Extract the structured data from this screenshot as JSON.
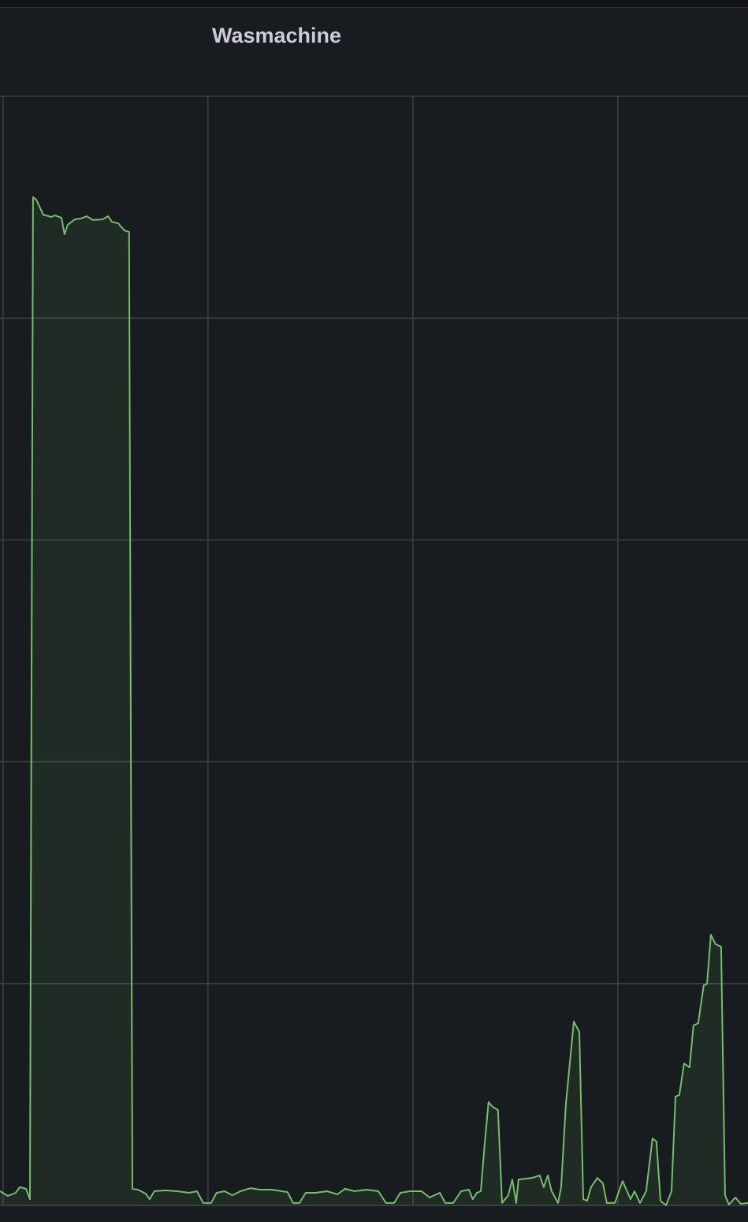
{
  "chart_data": {
    "type": "line",
    "title": "Wasmachine",
    "x": [
      -0.15,
      0.23,
      0.62,
      0.81,
      1.12,
      1.31,
      1.46,
      1.62,
      1.96,
      2.35,
      2.54,
      2.85,
      3.0,
      3.15,
      3.5,
      3.81,
      4.08,
      4.38,
      4.85,
      5.12,
      5.31,
      5.62,
      5.92,
      6.15,
      6.31,
      6.58,
      6.96,
      7.15,
      7.38,
      7.92,
      8.5,
      9.08,
      9.46,
      9.77,
      10.15,
      10.42,
      10.81,
      11.19,
      11.58,
      12.08,
      12.54,
      13.12,
      13.88,
      14.15,
      14.46,
      14.77,
      15.23,
      15.81,
      16.31,
      16.69,
      17.15,
      17.73,
      18.31,
      18.69,
      19.08,
      19.38,
      19.85,
      20.42,
      20.81,
      21.31,
      21.58,
      21.96,
      22.35,
      22.73,
      22.92,
      23.12,
      23.31,
      23.5,
      23.69,
      23.88,
      24.15,
      24.35,
      24.65,
      24.85,
      25.04,
      25.15,
      25.54,
      25.81,
      26.19,
      26.38,
      26.58,
      26.77,
      27.08,
      27.23,
      27.46,
      27.85,
      28.12,
      28.31,
      28.5,
      28.69,
      29.0,
      29.27,
      29.46,
      29.85,
      30.23,
      30.62,
      30.81,
      31.08,
      31.38,
      31.69,
      31.88,
      32.08,
      32.35,
      32.62,
      32.81,
      33.0,
      33.23,
      33.5,
      33.69,
      33.92,
      34.19,
      34.35,
      34.54,
      34.77,
      35.04,
      35.23,
      35.42,
      35.73,
      36.0,
      36.35
    ],
    "values": [
      6.4,
      4.3,
      5.7,
      8.2,
      7.5,
      2.8,
      454.5,
      453.4,
      446.6,
      445.6,
      446.3,
      445.2,
      437.8,
      442.0,
      444.5,
      444.9,
      445.9,
      444.2,
      444.5,
      445.9,
      443.4,
      442.7,
      439.5,
      438.8,
      7.5,
      7.1,
      5.3,
      2.8,
      6.4,
      6.8,
      6.4,
      5.7,
      6.4,
      1.1,
      1.1,
      5.7,
      6.4,
      4.6,
      6.4,
      7.8,
      7.1,
      7.1,
      6.0,
      1.1,
      1.1,
      5.7,
      5.7,
      6.4,
      5.0,
      7.5,
      6.4,
      7.1,
      6.4,
      1.1,
      1.1,
      5.7,
      6.4,
      6.4,
      3.6,
      5.7,
      1.1,
      1.1,
      6.4,
      7.1,
      2.8,
      5.7,
      6.4,
      27.7,
      46.6,
      44.5,
      43.0,
      1.1,
      4.6,
      11.7,
      1.1,
      11.7,
      12.1,
      12.4,
      13.5,
      8.2,
      13.5,
      6.4,
      1.1,
      8.2,
      45.5,
      82.9,
      78.2,
      2.8,
      2.1,
      8.2,
      12.4,
      10.0,
      1.1,
      1.1,
      11.0,
      2.8,
      6.4,
      1.1,
      6.4,
      30.2,
      28.8,
      2.1,
      0,
      6.4,
      49.1,
      49.8,
      64.0,
      62.2,
      81.1,
      82.1,
      99.2,
      99.9,
      122.0,
      117.7,
      116.6,
      4.6,
      0.4,
      3.6,
      0.7,
      1.1
    ],
    "color": "#73bf69",
    "xlim": [
      -0.15,
      36.35
    ],
    "xticks": [
      0,
      10,
      20,
      30
    ],
    "ylim": [
      0,
      500
    ],
    "yticks": [
      0,
      100,
      200,
      300,
      400,
      500
    ],
    "grid": true
  }
}
